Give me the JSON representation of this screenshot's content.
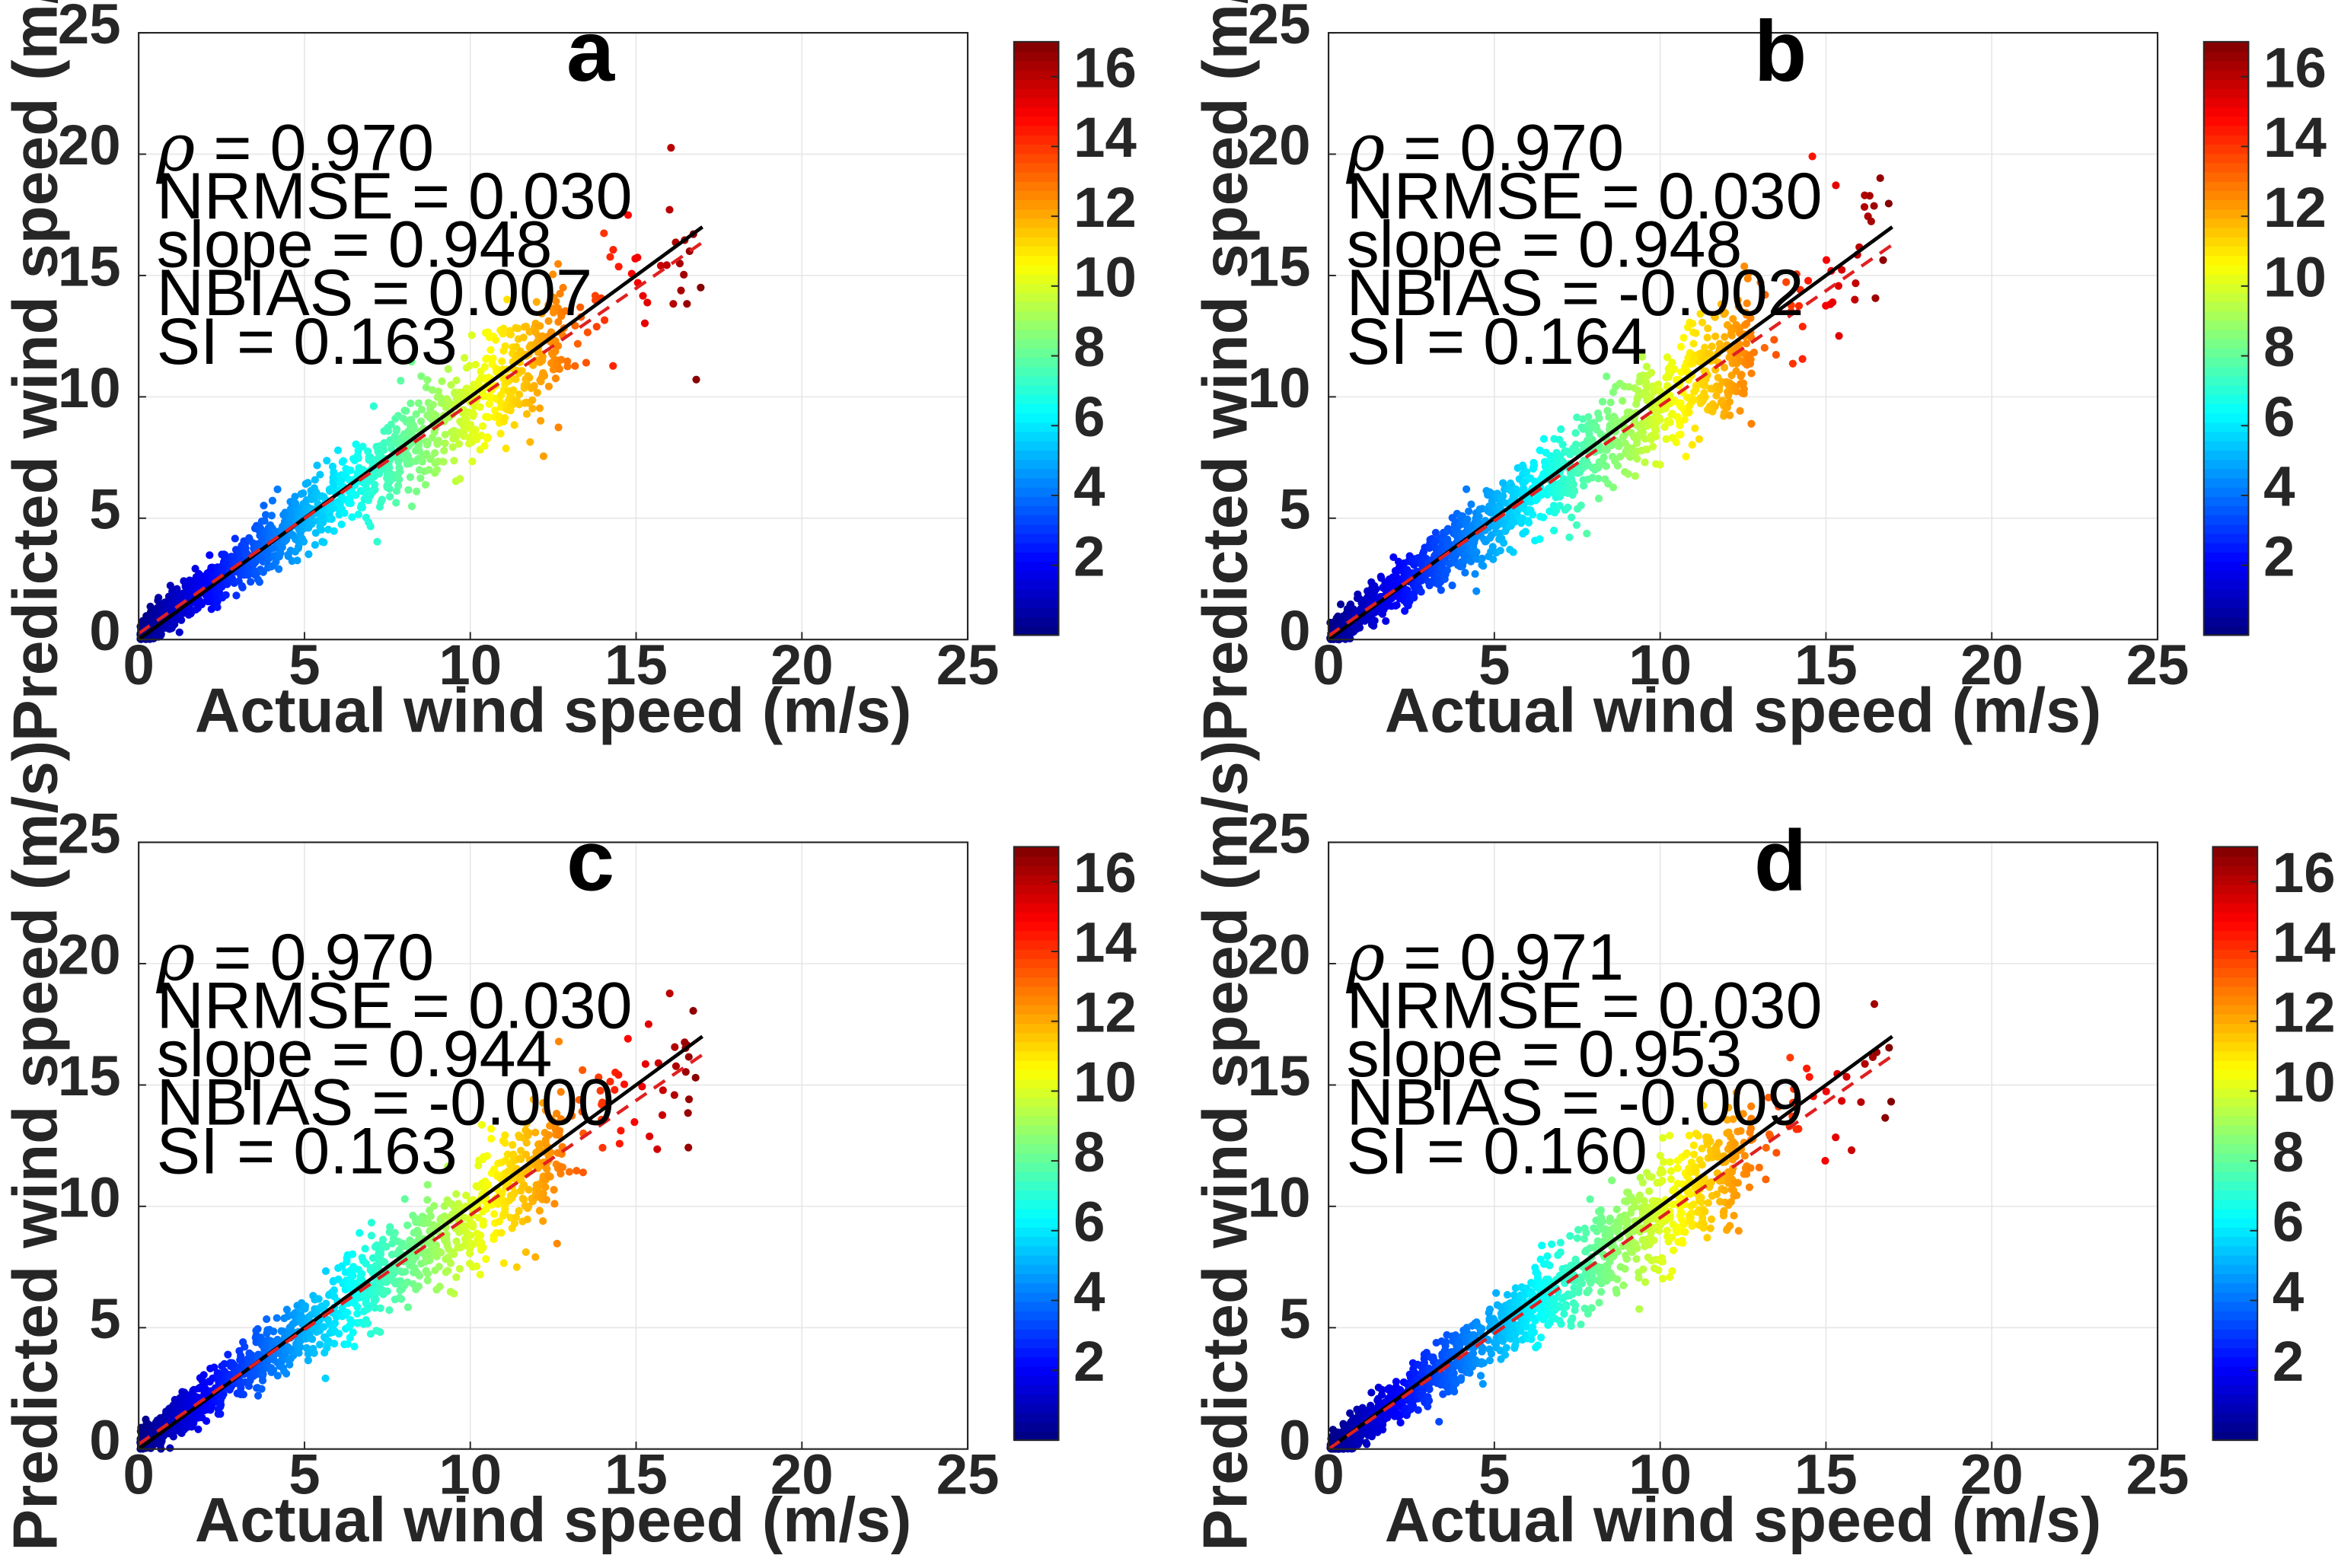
{
  "chart_data": [
    {
      "type": "scatter",
      "panel_label": "a",
      "xlabel": "Actual wind speed (m/s)",
      "ylabel": "Predicted wind speed (m/s)",
      "xlim": [
        0,
        25
      ],
      "ylim": [
        0,
        25
      ],
      "x_ticks": [
        "0",
        "5",
        "10",
        "15",
        "20",
        "25"
      ],
      "y_ticks": [
        "0",
        "5",
        "10",
        "15",
        "20",
        "25"
      ],
      "grid": true,
      "stats": {
        "rho": "= 0.970",
        "nrmse": "NRMSE = 0.030",
        "slope": "slope = 0.948",
        "nbias": "NBIAS = 0.007",
        "si": "SI = 0.163"
      },
      "fit_line": {
        "slope": 0.948,
        "intercept": 0.25,
        "color": "#e02020",
        "style": "dashed"
      },
      "identity_line": {
        "x": [
          0,
          17
        ],
        "y": [
          0,
          17
        ],
        "color": "#000000"
      },
      "colorbar": {
        "min": 0,
        "max": 17,
        "ticks": [
          "2",
          "4",
          "6",
          "8",
          "10",
          "12",
          "14",
          "16"
        ],
        "colormap": "jet"
      },
      "data_summary": {
        "x_range": [
          0,
          17
        ],
        "approx_points_drawn": 1400,
        "color_by": "actual wind speed"
      }
    },
    {
      "type": "scatter",
      "panel_label": "b",
      "xlabel": "Actual wind speed (m/s)",
      "ylabel": "Predicted wind speed (m/s)",
      "xlim": [
        0,
        25
      ],
      "ylim": [
        0,
        25
      ],
      "x_ticks": [
        "0",
        "5",
        "10",
        "15",
        "20",
        "25"
      ],
      "y_ticks": [
        "0",
        "5",
        "10",
        "15",
        "20",
        "25"
      ],
      "grid": true,
      "stats": {
        "rho": "= 0.970",
        "nrmse": "NRMSE = 0.030",
        "slope": "slope = 0.948",
        "nbias": "NBIAS = -0.002",
        "si": "SI = 0.164"
      },
      "fit_line": {
        "slope": 0.948,
        "intercept": 0.15,
        "color": "#e02020",
        "style": "dashed"
      },
      "identity_line": {
        "x": [
          0,
          17
        ],
        "y": [
          0,
          17
        ],
        "color": "#000000"
      },
      "colorbar": {
        "min": 0,
        "max": 17,
        "ticks": [
          "2",
          "4",
          "6",
          "8",
          "10",
          "12",
          "14",
          "16"
        ],
        "colormap": "jet"
      },
      "data_summary": {
        "x_range": [
          0,
          17
        ],
        "approx_points_drawn": 1400,
        "color_by": "actual wind speed"
      }
    },
    {
      "type": "scatter",
      "panel_label": "c",
      "xlabel": "Actual wind speed (m/s)",
      "ylabel": "Predicted wind speed (m/s)",
      "xlim": [
        0,
        25
      ],
      "ylim": [
        0,
        25
      ],
      "x_ticks": [
        "0",
        "5",
        "10",
        "15",
        "20",
        "25"
      ],
      "y_ticks": [
        "0",
        "5",
        "10",
        "15",
        "20",
        "25"
      ],
      "grid": true,
      "stats": {
        "rho": "= 0.970",
        "nrmse": "NRMSE = 0.030",
        "slope": "slope = 0.944",
        "nbias": "NBIAS = -0.000",
        "si": "SI = 0.163"
      },
      "fit_line": {
        "slope": 0.944,
        "intercept": 0.2,
        "color": "#e02020",
        "style": "dashed"
      },
      "identity_line": {
        "x": [
          0,
          17
        ],
        "y": [
          0,
          17
        ],
        "color": "#000000"
      },
      "colorbar": {
        "min": 0,
        "max": 17,
        "ticks": [
          "2",
          "4",
          "6",
          "8",
          "10",
          "12",
          "14",
          "16"
        ],
        "colormap": "jet"
      },
      "data_summary": {
        "x_range": [
          0,
          17
        ],
        "approx_points_drawn": 1400,
        "color_by": "actual wind speed"
      }
    },
    {
      "type": "scatter",
      "panel_label": "d",
      "xlabel": "Actual wind speed (m/s)",
      "ylabel": "Predicted wind speed (m/s)",
      "xlim": [
        0,
        25
      ],
      "ylim": [
        0,
        25
      ],
      "x_ticks": [
        "0",
        "5",
        "10",
        "15",
        "20",
        "25"
      ],
      "y_ticks": [
        "0",
        "5",
        "10",
        "15",
        "20",
        "25"
      ],
      "grid": true,
      "stats": {
        "rho": "= 0.971",
        "nrmse": "NRMSE = 0.030",
        "slope": "slope = 0.953",
        "nbias": "NBIAS = -0.009",
        "si": "SI = 0.160"
      },
      "fit_line": {
        "slope": 0.953,
        "intercept": 0.0,
        "color": "#e02020",
        "style": "dashed"
      },
      "identity_line": {
        "x": [
          0,
          17
        ],
        "y": [
          0,
          17
        ],
        "color": "#000000"
      },
      "colorbar": {
        "min": 0,
        "max": 17,
        "ticks": [
          "2",
          "4",
          "6",
          "8",
          "10",
          "12",
          "14",
          "16"
        ],
        "colormap": "jet"
      },
      "data_summary": {
        "x_range": [
          0,
          17
        ],
        "approx_points_drawn": 1400,
        "color_by": "actual wind speed"
      }
    }
  ]
}
